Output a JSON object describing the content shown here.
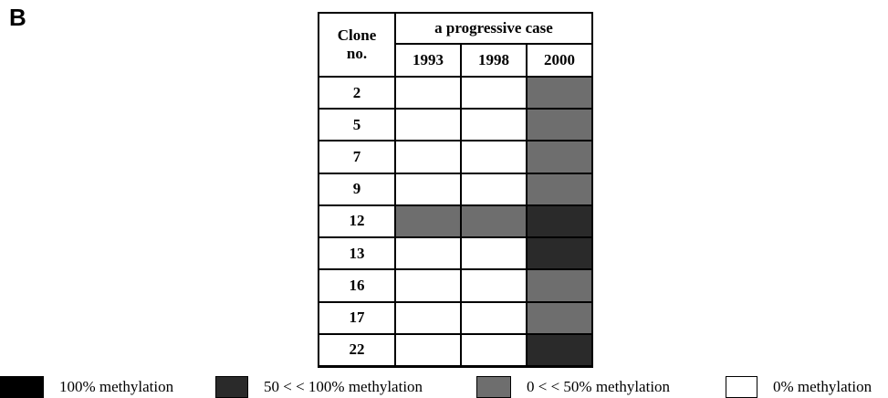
{
  "panel_label": "B",
  "table": {
    "header": {
      "clone": "Clone no.",
      "group": "a progressive case",
      "years": [
        "1993",
        "1998",
        "2000"
      ]
    },
    "rows": [
      {
        "clone": "2",
        "cells": [
          "#ffffff",
          "#ffffff",
          "#6e6e6e"
        ]
      },
      {
        "clone": "5",
        "cells": [
          "#ffffff",
          "#ffffff",
          "#6e6e6e"
        ]
      },
      {
        "clone": "7",
        "cells": [
          "#ffffff",
          "#ffffff",
          "#6e6e6e"
        ]
      },
      {
        "clone": "9",
        "cells": [
          "#ffffff",
          "#ffffff",
          "#6e6e6e"
        ]
      },
      {
        "clone": "12",
        "cells": [
          "#6e6e6e",
          "#6e6e6e",
          "#2a2a2a"
        ]
      },
      {
        "clone": "13",
        "cells": [
          "#ffffff",
          "#ffffff",
          "#2a2a2a"
        ]
      },
      {
        "clone": "16",
        "cells": [
          "#ffffff",
          "#ffffff",
          "#6e6e6e"
        ]
      },
      {
        "clone": "17",
        "cells": [
          "#ffffff",
          "#ffffff",
          "#6e6e6e"
        ]
      },
      {
        "clone": "22",
        "cells": [
          "#ffffff",
          "#ffffff",
          "#2a2a2a"
        ]
      }
    ]
  },
  "legend": [
    {
      "label": "100% methylation",
      "color": "#000000"
    },
    {
      "label": "50 < < 100% methylation",
      "color": "#2a2a2a"
    },
    {
      "label": "0 < < 50% methylation",
      "color": "#6e6e6e"
    },
    {
      "label": "0% methylation",
      "color": "#ffffff"
    }
  ]
}
